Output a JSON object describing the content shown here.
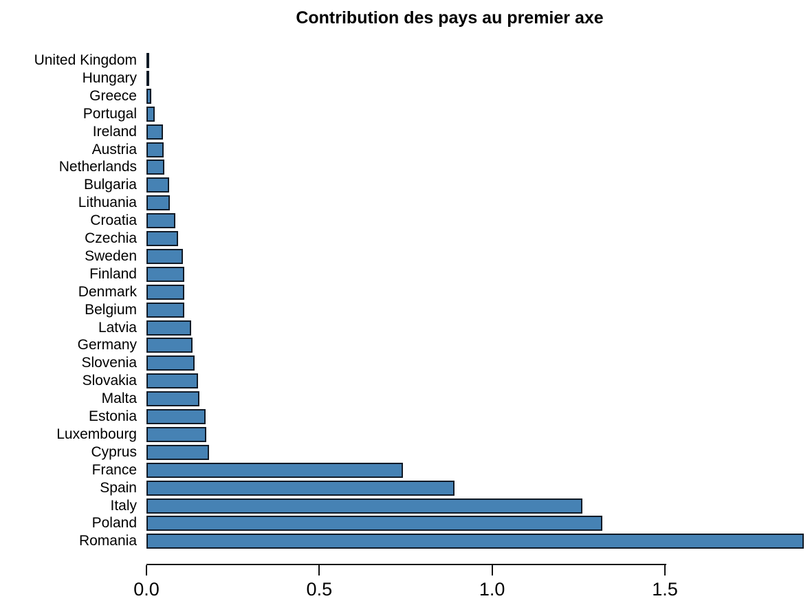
{
  "title": "Contribution des pays au premier axe",
  "colors": {
    "bar_fill": "#4682B4",
    "bar_border": "#101a26",
    "axis": "#111111",
    "text": "#000000",
    "background": "#FFFFFF"
  },
  "chart_data": {
    "type": "bar",
    "orientation": "horizontal",
    "title": "Contribution des pays au premier axe",
    "xlabel": "",
    "ylabel": "",
    "grid": false,
    "legend": false,
    "xlim": [
      0,
      1.92
    ],
    "x_ticks": [
      0,
      0.5,
      1.0,
      1.5
    ],
    "x_tick_labels": [
      "0.0",
      "0.5",
      "1.0",
      "1.5"
    ],
    "categories": [
      "United Kingdom",
      "Hungary",
      "Greece",
      "Portugal",
      "Ireland",
      "Austria",
      "Netherlands",
      "Bulgaria",
      "Lithuania",
      "Croatia",
      "Czechia",
      "Sweden",
      "Finland",
      "Denmark",
      "Belgium",
      "Latvia",
      "Germany",
      "Slovenia",
      "Slovakia",
      "Malta",
      "Estonia",
      "Luxembourg",
      "Cyprus",
      "France",
      "Spain",
      "Italy",
      "Poland",
      "Romania"
    ],
    "values": [
      0.003,
      0.004,
      0.014,
      0.024,
      0.048,
      0.049,
      0.052,
      0.065,
      0.067,
      0.084,
      0.092,
      0.105,
      0.11,
      0.11,
      0.11,
      0.129,
      0.133,
      0.139,
      0.149,
      0.153,
      0.171,
      0.173,
      0.181,
      0.742,
      0.891,
      1.261,
      1.319,
      1.902
    ]
  }
}
